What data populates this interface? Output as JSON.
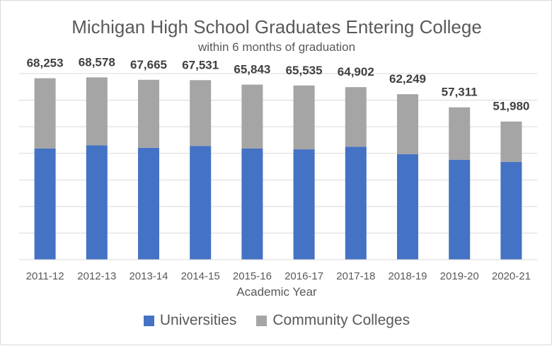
{
  "chart_data": {
    "type": "bar",
    "stacked": true,
    "title": "Michigan High School Graduates Entering College",
    "subtitle": "within 6 months of graduation",
    "xlabel": "Academic Year",
    "ylabel": "",
    "categories": [
      "2011-12",
      "2012-13",
      "2013-14",
      "2014-15",
      "2015-16",
      "2016-17",
      "2017-18",
      "2018-19",
      "2019-20",
      "2020-21"
    ],
    "totals": [
      68253,
      68578,
      67665,
      67531,
      65843,
      65535,
      64902,
      62249,
      57311,
      51980
    ],
    "total_labels": [
      "68,253",
      "68,578",
      "67,665",
      "67,531",
      "65,843",
      "65,535",
      "64,902",
      "62,249",
      "57,311",
      "51,980"
    ],
    "series": [
      {
        "name": "Universities",
        "color": "#4472c4",
        "values": [
          41800,
          43000,
          42100,
          42800,
          41800,
          41500,
          42500,
          39700,
          37600,
          36800
        ]
      },
      {
        "name": "Community Colleges",
        "color": "#a5a5a5",
        "values": [
          26453,
          25578,
          25565,
          24731,
          24043,
          24035,
          22402,
          22549,
          19711,
          15180
        ]
      }
    ],
    "ylim": [
      0,
      70000
    ],
    "gridlines": true,
    "legend_position": "bottom"
  }
}
